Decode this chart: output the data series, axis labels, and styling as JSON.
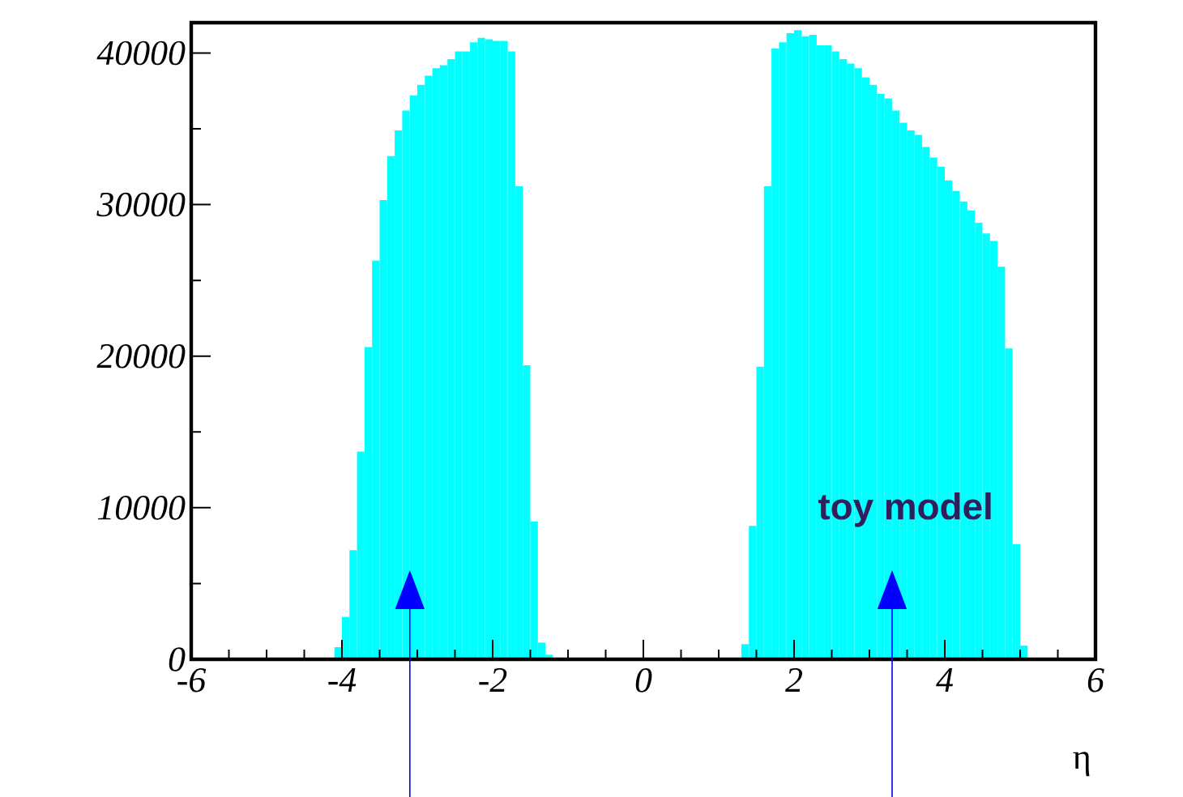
{
  "chart_data": {
    "type": "histogram",
    "xlabel": "η",
    "bins": [
      -6.0,
      -5.9,
      -5.8,
      -5.7,
      -5.6,
      -5.5,
      -5.4,
      -5.3,
      -5.2,
      -5.1,
      -5.0,
      -4.9,
      -4.8,
      -4.7,
      -4.6,
      -4.5,
      -4.4,
      -4.3,
      -4.2,
      -4.1,
      -4.0,
      -3.9,
      -3.8,
      -3.7,
      -3.6,
      -3.5,
      -3.4,
      -3.3,
      -3.2,
      -3.1,
      -3.0,
      -2.9,
      -2.8,
      -2.7,
      -2.6,
      -2.5,
      -2.4,
      -2.3,
      -2.2,
      -2.1,
      -2.0,
      -1.9,
      -1.8,
      -1.7,
      -1.6,
      -1.5,
      -1.4,
      -1.3,
      -1.2,
      -1.1,
      -1.0,
      -0.9,
      -0.8,
      -0.7,
      -0.6,
      -0.5,
      -0.4,
      -0.3,
      -0.2,
      -0.1,
      0.0,
      0.1,
      0.2,
      0.3,
      0.4,
      0.5,
      0.6,
      0.7,
      0.8,
      0.9,
      1.0,
      1.1,
      1.2,
      1.3,
      1.4,
      1.5,
      1.6,
      1.7,
      1.8,
      1.9,
      2.0,
      2.1,
      2.2,
      2.3,
      2.4,
      2.5,
      2.6,
      2.7,
      2.8,
      2.9,
      3.0,
      3.1,
      3.2,
      3.3,
      3.4,
      3.5,
      3.6,
      3.7,
      3.8,
      3.9,
      4.0,
      4.1,
      4.2,
      4.3,
      4.4,
      4.5,
      4.6,
      4.7,
      4.8,
      4.9,
      5.0,
      5.1,
      5.2,
      5.3,
      5.4,
      5.5,
      5.6,
      5.7,
      5.8,
      5.9,
      6.0
    ],
    "values": [
      0,
      0,
      0,
      0,
      0,
      0,
      0,
      0,
      0,
      0,
      0,
      0,
      0,
      0,
      0,
      0,
      0,
      0,
      0,
      800,
      2800,
      7200,
      13700,
      20600,
      26300,
      30300,
      33200,
      34900,
      36200,
      37200,
      37900,
      38500,
      39000,
      39200,
      39600,
      40100,
      40100,
      40700,
      41000,
      40900,
      40800,
      40800,
      40100,
      31200,
      19400,
      9100,
      1100,
      300,
      0,
      0,
      0,
      0,
      0,
      0,
      0,
      0,
      0,
      0,
      0,
      0,
      0,
      0,
      0,
      0,
      0,
      0,
      0,
      0,
      0,
      0,
      0,
      0,
      0,
      1000,
      8800,
      19300,
      31200,
      40300,
      40700,
      41300,
      41500,
      41100,
      41200,
      40500,
      40500,
      40100,
      39600,
      39300,
      39000,
      38400,
      37900,
      37300,
      37000,
      36200,
      35400,
      34900,
      34600,
      33800,
      33100,
      32500,
      31600,
      30900,
      30200,
      29600,
      28800,
      28100,
      27600,
      25900,
      20500,
      7600,
      900,
      0,
      0,
      0,
      0,
      0,
      0,
      0,
      0,
      0
    ],
    "color": "#00ffff",
    "xlim": [
      -6,
      6
    ],
    "ylim": [
      0,
      42000
    ],
    "xticks": [
      -6,
      -4,
      -2,
      0,
      2,
      4,
      6
    ],
    "yticks": [
      0,
      10000,
      20000,
      30000,
      40000
    ],
    "grid": false,
    "annotations": [
      "toy model"
    ]
  }
}
